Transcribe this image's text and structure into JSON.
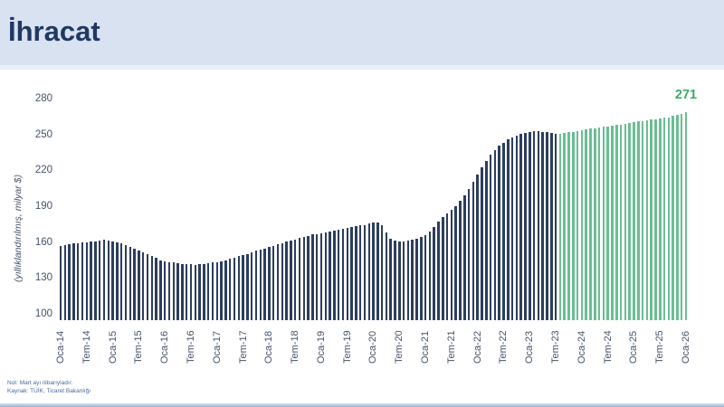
{
  "page": {
    "title": "İhracat"
  },
  "chart_data": {
    "type": "bar",
    "title": "İhracat",
    "ylabel": "(yıllıklandırılmış, milyar $)",
    "unit": "milyar $",
    "ylim": [
      100,
      280
    ],
    "yticks": [
      280,
      250,
      220,
      190,
      160,
      130,
      100
    ],
    "grid": "off",
    "legend": "none",
    "x_tick_interval_months": 6,
    "x_tick_labels": [
      "Oca-14",
      "Tem-14",
      "Oca-15",
      "Tem-15",
      "Oca-16",
      "Tem-16",
      "Oca-17",
      "Tem-17",
      "Oca-18",
      "Tem-18",
      "Oca-19",
      "Tem-19",
      "Oca-20",
      "Tem-20",
      "Oca-21",
      "Tem-21",
      "Oca-22",
      "Tem-22",
      "Oca-23",
      "Tem-23",
      "Oca-24",
      "Tem-24",
      "Oca-25",
      "Tem-25",
      "Oca-26"
    ],
    "segments": [
      {
        "name": "actual",
        "color": "#2c3e5d",
        "start_index": 0,
        "end_index": 114
      },
      {
        "name": "forecast",
        "color": "#6bbe93",
        "start_index": 115,
        "end_index": 144
      }
    ],
    "values": [
      161,
      162,
      162.5,
      163,
      163.5,
      164,
      164,
      164.5,
      165,
      165.5,
      166,
      165.5,
      165,
      164,
      163,
      161.5,
      160,
      158.5,
      157,
      155.5,
      154,
      152.5,
      151,
      149.5,
      148.5,
      148,
      147.5,
      147,
      146.5,
      146.5,
      146,
      145.5,
      146,
      146.5,
      147,
      147.5,
      148,
      148.5,
      149.5,
      150.5,
      151.5,
      152.5,
      153.5,
      154.5,
      155.5,
      157,
      158,
      159,
      160,
      161,
      162.5,
      163.5,
      164.5,
      165.5,
      166.5,
      167.5,
      168.5,
      169.5,
      170.5,
      171,
      171.5,
      172.5,
      173,
      174,
      174.5,
      175,
      176,
      176.5,
      177.5,
      178,
      178.5,
      179.5,
      180,
      180.5,
      178,
      172,
      167,
      165.5,
      165,
      165,
      165.5,
      166,
      167,
      168.5,
      170,
      173,
      177,
      181,
      185,
      188,
      190.5,
      194,
      198,
      203,
      208,
      214,
      220,
      226,
      231,
      236,
      240,
      243.5,
      246,
      248.5,
      250.5,
      252,
      253,
      254,
      255,
      255.5,
      255.5,
      255,
      254.5,
      254,
      253,
      253.5,
      254,
      254.5,
      255,
      255.5,
      256.5,
      257,
      257.5,
      258,
      258.5,
      259,
      259.5,
      260,
      260.5,
      261,
      261.5,
      262,
      263,
      263.5,
      264,
      264.5,
      265,
      265.5,
      266,
      266.5,
      267,
      268,
      269,
      270,
      271
    ],
    "last_value_label": "271"
  },
  "footnotes": {
    "note": "Not: Mart ayı itibarıyladır.",
    "source": "Kaynak: TÜİK, Ticaret Bakanlığı"
  },
  "colors": {
    "header_bg": "#d9e2f1",
    "title": "#1f3864",
    "bar_actual": "#2c3e5d",
    "bar_forecast": "#6bbe93",
    "value_label": "#3fa863",
    "axis_text": "#44546a",
    "footnote_text": "#4a6a9d",
    "footer_line": "#96b0da"
  }
}
